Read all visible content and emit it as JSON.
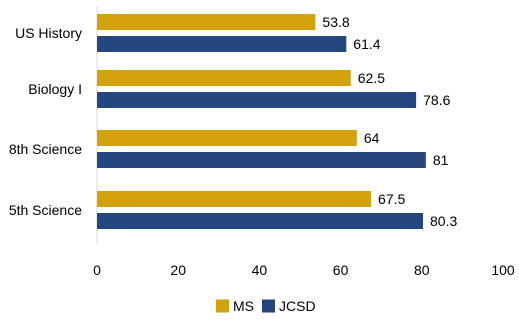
{
  "chart_data": {
    "type": "bar",
    "orientation": "horizontal",
    "categories": [
      "US History",
      "Biology I",
      "8th Science",
      "5th Science"
    ],
    "series": [
      {
        "name": "MS",
        "values": [
          53.8,
          62.5,
          64,
          67.5
        ],
        "value_labels": [
          "53.8",
          "62.5",
          "64",
          "67.5"
        ],
        "color": "#D4A20D"
      },
      {
        "name": "JCSD",
        "values": [
          61.4,
          78.6,
          81,
          80.3
        ],
        "value_labels": [
          "61.4",
          "78.6",
          "81",
          "80.3"
        ],
        "color": "#23467F"
      }
    ],
    "xlim": [
      0,
      100
    ],
    "x_ticks": [
      "0",
      "20",
      "40",
      "60",
      "80",
      "100"
    ],
    "grid": false,
    "legend_position": "bottom"
  }
}
